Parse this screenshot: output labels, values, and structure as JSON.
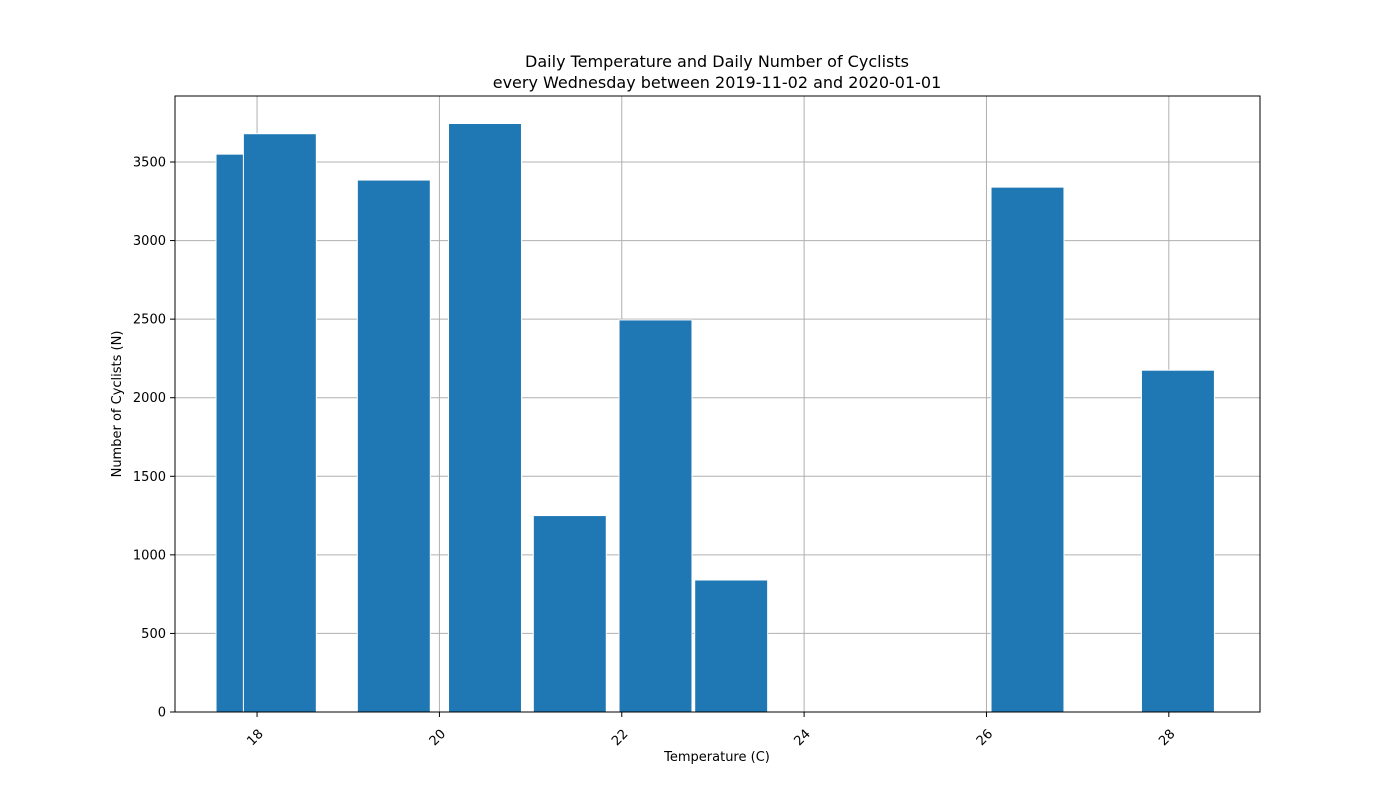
{
  "chart_data": {
    "type": "bar",
    "title_line1": "Daily Temperature and Daily Number of Cyclists",
    "title_line2": "every Wednesday between 2019-11-02 and 2020-01-01",
    "xlabel": "Temperature (C)",
    "ylabel": "Number of Cyclists (N)",
    "xlim": [
      17.1,
      29.0
    ],
    "ylim": [
      0,
      3920
    ],
    "xticks": [
      18,
      20,
      22,
      24,
      26,
      28
    ],
    "yticks": [
      0,
      500,
      1000,
      1500,
      2000,
      2500,
      3000,
      3500
    ],
    "bar_width": 0.8,
    "grid": true,
    "bars": [
      {
        "x": 17.95,
        "value": 3550
      },
      {
        "x": 18.25,
        "value": 3680
      },
      {
        "x": 19.5,
        "value": 3385
      },
      {
        "x": 20.5,
        "value": 3745
      },
      {
        "x": 21.43,
        "value": 1250
      },
      {
        "x": 22.37,
        "value": 2495
      },
      {
        "x": 23.2,
        "value": 840
      },
      {
        "x": 26.45,
        "value": 3340
      },
      {
        "x": 28.1,
        "value": 2175
      }
    ],
    "colors": {
      "bar": "#1f77b4"
    }
  }
}
